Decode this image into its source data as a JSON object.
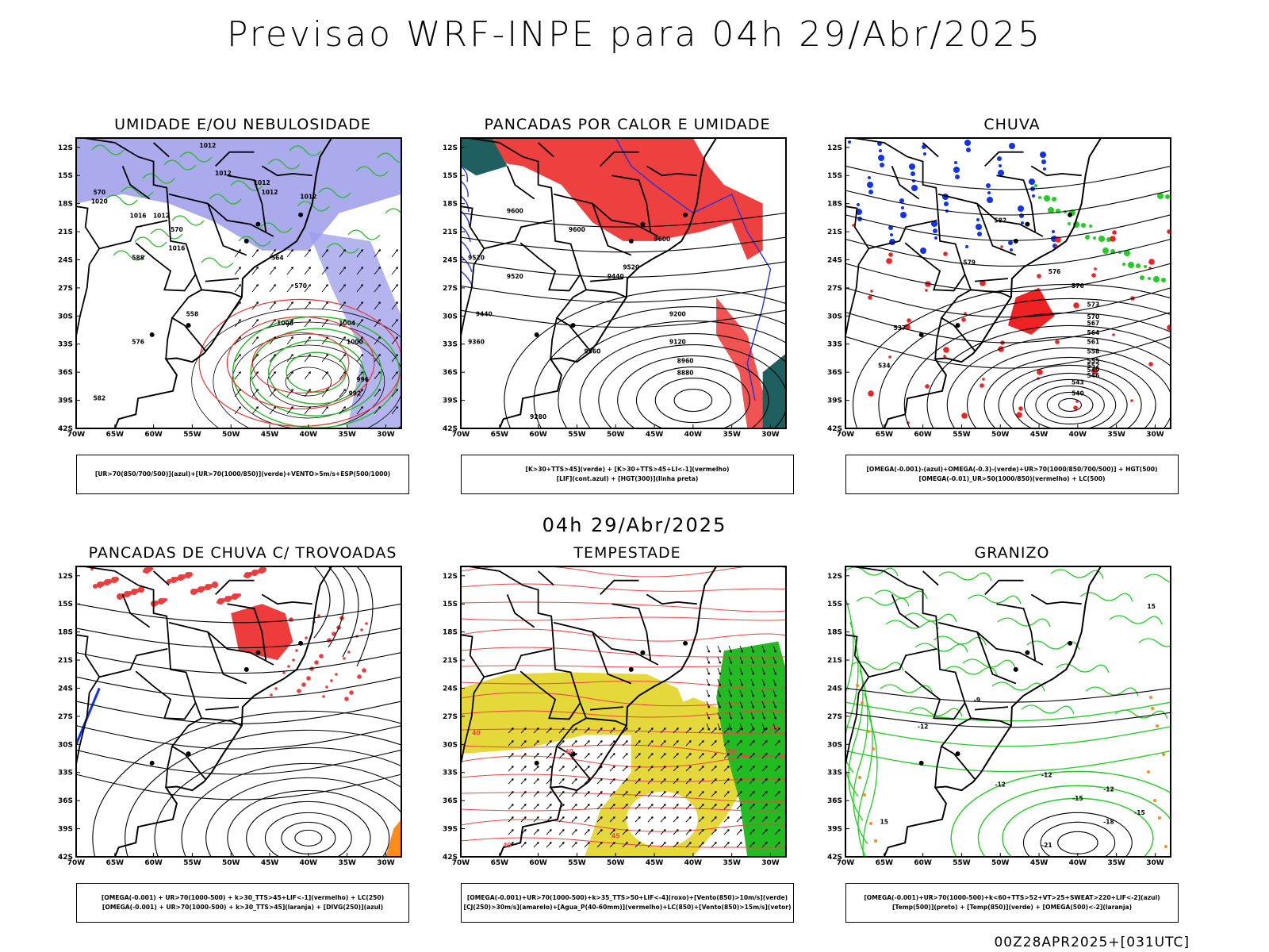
{
  "title": "Previsao WRF-INPE  para 04h 29/Abr/2025",
  "mid_time": "04h 29/Abr/2025",
  "footer": "00Z28APR2025+[031UTC]",
  "lat_ticks": [
    "12S",
    "15S",
    "18S",
    "21S",
    "24S",
    "27S",
    "30S",
    "33S",
    "36S",
    "39S",
    "42S"
  ],
  "lon_ticks": [
    "70W",
    "65W",
    "60W",
    "55W",
    "50W",
    "45W",
    "40W",
    "35W",
    "30W"
  ],
  "panels": [
    {
      "title": "UMIDADE E/OU NEBULOSIDADE",
      "legend": [
        "[UR>70(850/700/500)](azul)+[UR>70(1000/850)](verde)+VENTO>5m/s+ESP(500/1000)"
      ],
      "colors": {
        "fill": "#9b9bea",
        "contour1": "#22bb22",
        "contour2": "#ee3333"
      },
      "labels": [
        "1012",
        "1012",
        "1012",
        "1012",
        "1012",
        "1020",
        "1016",
        "1012",
        "1016",
        "1008",
        "1004",
        "1000",
        "996",
        "992",
        "570",
        "570",
        "564",
        "558",
        "576",
        "582",
        "588",
        "570"
      ]
    },
    {
      "title": "PANCADAS POR CALOR E UMIDADE",
      "legend": [
        "[K>30+TTS>45](verde) + [K>30+TTS>45+LI<-1](vermelho)",
        "[LIF](cont.azul) + [HGT(300)](linha preta)"
      ],
      "colors": {
        "fill": "#ef4040",
        "fill2": "#1f5f5f",
        "contour": "#2233dd"
      },
      "labels": [
        "9600",
        "9600",
        "9600",
        "9520",
        "9520",
        "9520",
        "9440",
        "9440",
        "9360",
        "9360",
        "9280",
        "9200",
        "9120",
        "8960",
        "8880"
      ]
    },
    {
      "title": "CHUVA",
      "legend": [
        "[OMEGA(-0.001)-(azul)+OMEGA(-0.3)-(verde)+UR>70(1000/850/700/500)] + HGT(500)",
        "[OMEGA(-0.01)_UR>50(1000/850)(vermelho) + LC(500)"
      ],
      "colors": {
        "blue": "#1133ee",
        "green": "#22cc22",
        "red": "#ee2222"
      },
      "labels": [
        "582",
        "579",
        "576",
        "576",
        "573",
        "570",
        "567",
        "564",
        "561",
        "558",
        "555",
        "552",
        "549",
        "546",
        "543",
        "540",
        "537",
        "534"
      ]
    },
    {
      "title": "PANCADAS DE CHUVA C/ TROVOADAS",
      "legend": [
        "[OMEGA(-0.001) + UR>70(1000-500) + k>30_TTS>45+LIF<-1](vermelho) + LC(250)",
        "[OMEGA(-0.001) + UR>70(1000-500) + k>30_TTS>45](laranja) + [DIVG(250)](azul)"
      ],
      "colors": {
        "red": "#ee3b3b",
        "orange": "#ff8c1a",
        "blue": "#1133ee"
      },
      "labels": []
    },
    {
      "title": "TEMPESTADE",
      "legend": [
        "[OMEGA(-0.001)+UR>70(1000-500)+k>35_TTS>50+LIF<-4](roxo)+[Vento(850)>10m/s](verde)",
        "[CJ(250)>30m/s](amarelo)+[Agua_P(40-60mm)](vermelho)+LC(850)+[Vento(850)>15m/s](vetor)"
      ],
      "colors": {
        "yellow": "#e4d83a",
        "green": "#22bb22",
        "red": "#ee4444"
      },
      "labels": [
        "40",
        "40",
        "45",
        "50",
        "45",
        "40"
      ]
    },
    {
      "title": "GRANIZO",
      "legend": [
        "[OMEGA(-0.001)+UR>70(1000-500)+k<60+TTS>52+VT>25+SWEAT>220+LIF<-2](azul)",
        "[Temp(500)](preto) + [Temp(850)](verde) + [OMEGA(500)<-2](laranja)"
      ],
      "colors": {
        "green": "#22cc22",
        "orange": "#ff8c1a"
      },
      "labels": [
        "-9",
        "-12",
        "-12",
        "-12",
        "-12",
        "-15",
        "-15",
        "-18",
        "-21",
        "15",
        "15"
      ]
    }
  ]
}
